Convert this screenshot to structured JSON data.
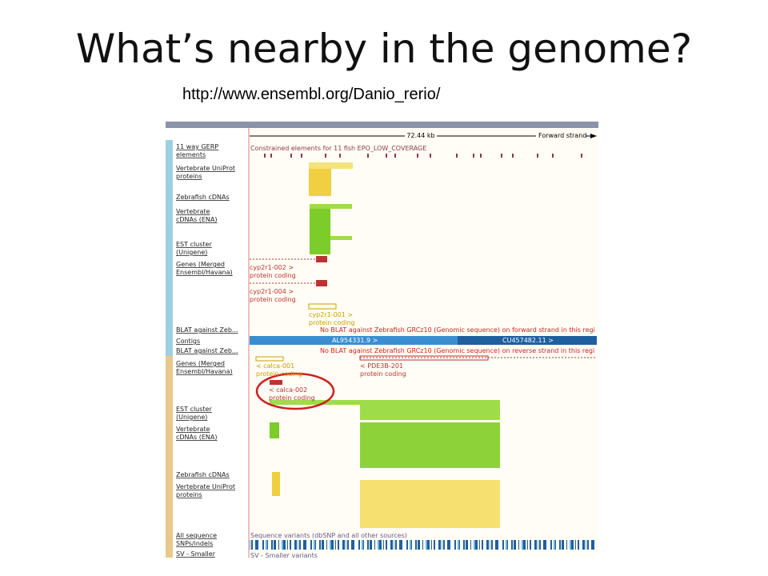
{
  "title": "What’s nearby in the genome?",
  "url": "http://www.ensembl.org/Danio_rerio/",
  "browser": {
    "scale_label": "72.44 kb",
    "strand_label": "Forward strand",
    "tracks": [
      [
        "11 way GERP",
        "elements"
      ],
      [
        "Vertebrate UniProt",
        "proteins"
      ],
      [
        "Zebrafish cDNAs"
      ],
      [
        "Vertebrate",
        "cDNAs (ENA)"
      ],
      [
        "EST cluster",
        "(Unigene)"
      ],
      [
        "Genes (Merged",
        "Ensembl/Havana)"
      ],
      [
        "BLAT against Zeb..."
      ],
      [
        "Contigs"
      ],
      [
        "BLAT against Zeb..."
      ],
      [
        "Genes (Merged",
        "Ensembl/Havana)"
      ],
      [
        "EST cluster",
        "(Unigene)"
      ],
      [
        "Vertebrate",
        "cDNAs (ENA)"
      ],
      [
        "Zebrafish cDNAs"
      ],
      [
        "Vertebrate UniProt",
        "proteins"
      ],
      [
        "All sequence",
        "SNPs/indels"
      ],
      [
        "SV - Smaller"
      ]
    ],
    "annotations": [
      "Constrained elements for 11 fish EPO_LOW_COVERAGE",
      "cyp2r1-002 >",
      "protein coding",
      "cyp2r1-004 >",
      "protein coding",
      "cyp2r1-001 >",
      "protein coding",
      "No BLAT against Zebrafish GRCz10 (Genomic sequence) on forward strand in this regi",
      "AL954331.9 >",
      "CU457482.11 >",
      "No BLAT against Zebrafish GRCz10 (Genomic sequence) on reverse strand in this regi",
      "< calca-001",
      "protein coding",
      "< PDE3B-201",
      "protein coding",
      "< calca-002",
      "protein coding",
      "Sequence variants (dbSNP and all other sources)",
      "SV - Smaller variants"
    ]
  }
}
